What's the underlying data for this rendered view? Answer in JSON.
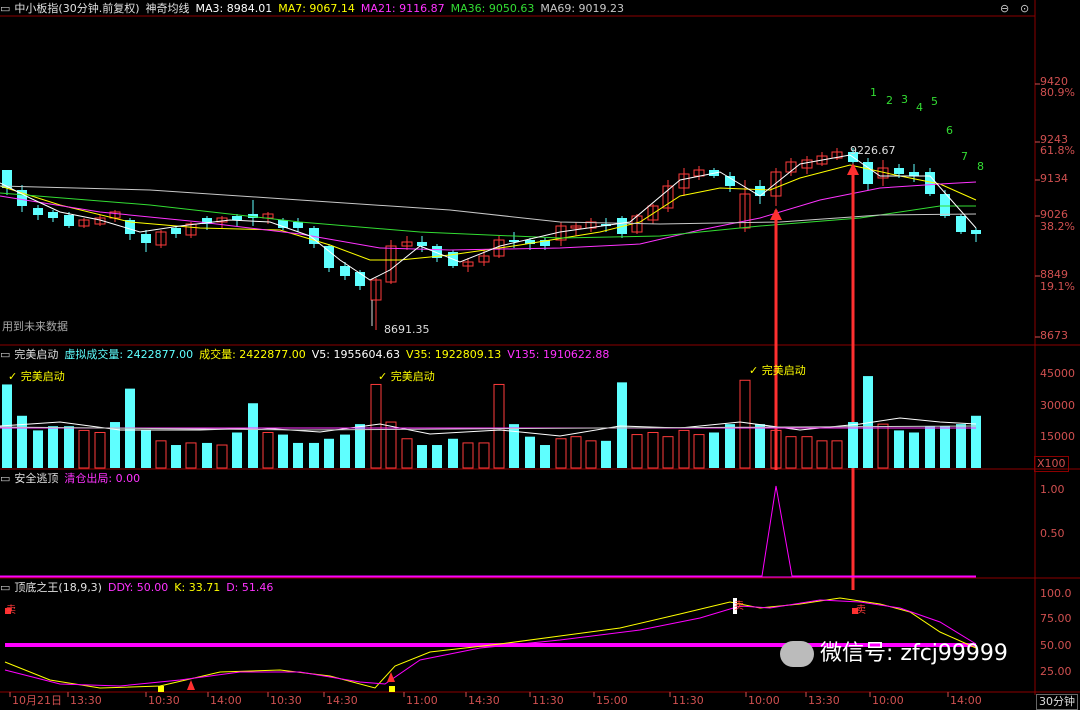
{
  "colors": {
    "up": "#ff3b3b",
    "down": "#5fffff",
    "ma3": "#ffffff",
    "ma7": "#ffff00",
    "ma21": "#ff33ff",
    "ma36": "#33dd33",
    "ma69": "#c8c8c8",
    "magenta": "#ff00ff",
    "grid": "#8b0000",
    "axis": "#d05050"
  },
  "main": {
    "title": "中小板指(30分钟.前复权)",
    "indicator": "神奇均线",
    "ma3": "MA3: 8984.01",
    "ma7": "MA7: 9067.14",
    "ma21": "MA21: 9116.87",
    "ma36": "MA36: 9050.63",
    "ma69": "MA69: 9019.23",
    "note": "用到未来数据",
    "low_mark": "8691.35",
    "high_mark": "9226.67",
    "axis": [
      "9420",
      "80.9%",
      "9243",
      "61.8%",
      "9134",
      "9026",
      "38.2%",
      "8849",
      "19.1%",
      "8673"
    ],
    "count_marks": [
      "1",
      "2",
      "3",
      "4",
      "5",
      "6",
      "7",
      "8"
    ]
  },
  "vol": {
    "title": "完美启动",
    "virtual": "虚拟成交量: 2422877.00",
    "volume": "成交量: 2422877.00",
    "v5": "V5: 1955604.63",
    "v35": "V35: 1922809.13",
    "v135": "V135: 1910622.88",
    "signal": "完美启动",
    "axis": [
      "45000",
      "30000",
      "15000"
    ],
    "unit": "X100"
  },
  "safe": {
    "title": "安全逃顶",
    "item": "清仓出局: 0.00",
    "axis": [
      "1.00",
      "0.50"
    ]
  },
  "kd": {
    "title": "顶底之王(18,9,3)",
    "ddy": "DDY: 50.00",
    "k": "K: 33.71",
    "d": "D: 51.46",
    "axis": [
      "100.0",
      "75.00",
      "50.00",
      "25.00"
    ],
    "sell": "卖"
  },
  "time_axis": [
    "10月21日",
    "13:30",
    "10:30",
    "14:00",
    "10:30",
    "14:30",
    "11:00",
    "14:30",
    "11:30",
    "15:00",
    "11:30",
    "10:00",
    "13:30",
    "10:00",
    "14:00"
  ],
  "period": "30分钟",
  "watermark": "微信号: zfcj99999"
}
